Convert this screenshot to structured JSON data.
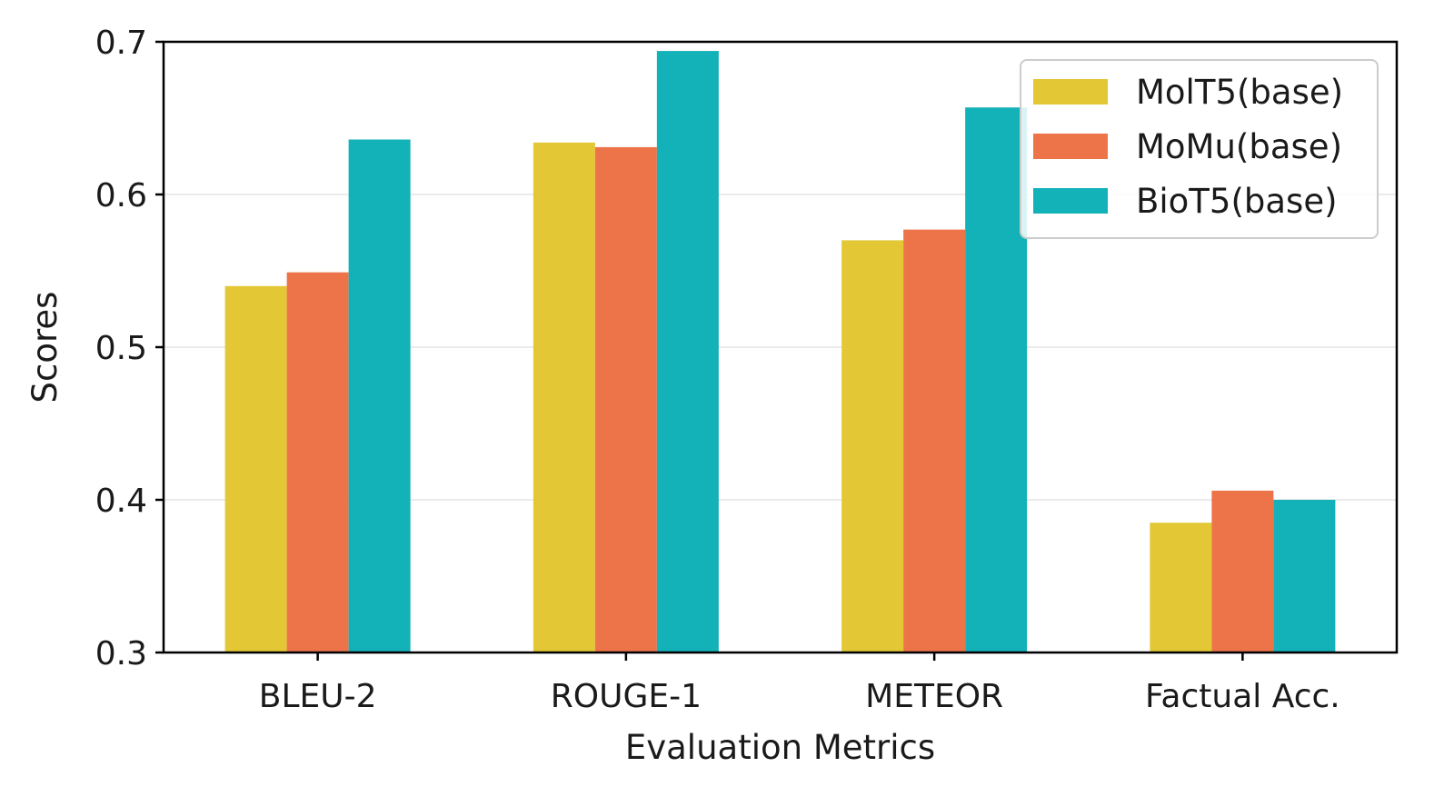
{
  "chart_data": {
    "type": "bar",
    "title": "",
    "xlabel": "Evaluation Metrics",
    "ylabel": "Scores",
    "categories": [
      "BLEU-2",
      "ROUGE-1",
      "METEOR",
      "Factual Acc."
    ],
    "ylim": [
      0.3,
      0.7
    ],
    "yticks": [
      "0.3",
      "0.4",
      "0.5",
      "0.6",
      "0.7"
    ],
    "grid": "horizontal",
    "legend_position": "top-right",
    "series": [
      {
        "name": "MolT5(base)",
        "color": "#e3c735",
        "values": [
          0.54,
          0.634,
          0.57,
          0.385
        ]
      },
      {
        "name": "MoMu(base)",
        "color": "#ed7348",
        "values": [
          0.549,
          0.631,
          0.577,
          0.406
        ]
      },
      {
        "name": "BioT5(base)",
        "color": "#13b1b8",
        "values": [
          0.636,
          0.694,
          0.657,
          0.4
        ]
      }
    ]
  }
}
